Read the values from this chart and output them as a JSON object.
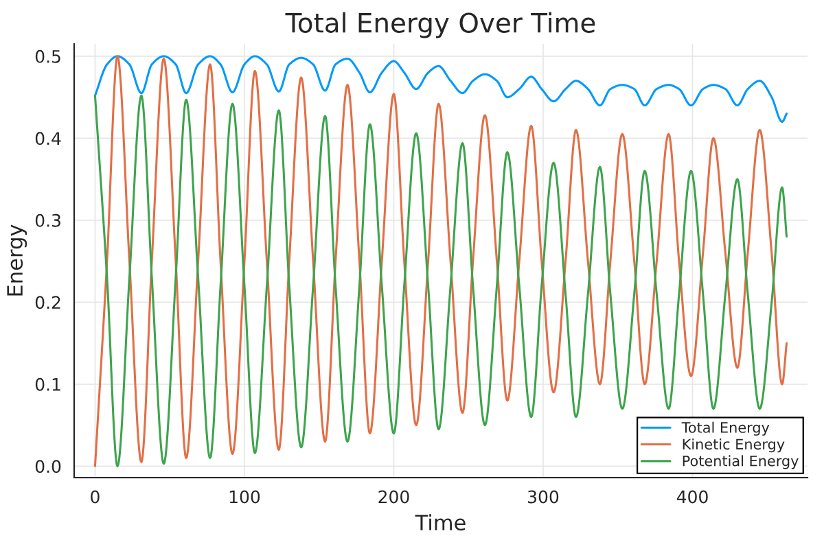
{
  "chart_data": {
    "type": "line",
    "title": "Total Energy Over Time",
    "xlabel": "Time",
    "ylabel": "Energy",
    "x": [
      0,
      8,
      15,
      23,
      31,
      38,
      46,
      54,
      61,
      69,
      77,
      84,
      92,
      100,
      107,
      115,
      123,
      130,
      138,
      146,
      154,
      161,
      169,
      177,
      184,
      192,
      200,
      207,
      215,
      223,
      230,
      238,
      246,
      253,
      261,
      269,
      276,
      284,
      292,
      299,
      307,
      315,
      322,
      330,
      338,
      345,
      353,
      361,
      368,
      376,
      384,
      391,
      399,
      407,
      414,
      422,
      430,
      437,
      445,
      453,
      460,
      463
    ],
    "series": [
      {
        "name": "Total Energy",
        "color": "#009af9",
        "values": [
          0.452,
          0.49,
          0.5,
          0.49,
          0.455,
          0.49,
          0.5,
          0.49,
          0.455,
          0.49,
          0.5,
          0.49,
          0.456,
          0.49,
          0.5,
          0.49,
          0.457,
          0.49,
          0.498,
          0.49,
          0.458,
          0.49,
          0.497,
          0.48,
          0.456,
          0.48,
          0.494,
          0.48,
          0.46,
          0.48,
          0.488,
          0.47,
          0.455,
          0.47,
          0.478,
          0.47,
          0.45,
          0.46,
          0.475,
          0.46,
          0.445,
          0.46,
          0.47,
          0.46,
          0.44,
          0.46,
          0.465,
          0.46,
          0.44,
          0.46,
          0.465,
          0.46,
          0.44,
          0.46,
          0.465,
          0.46,
          0.44,
          0.46,
          0.47,
          0.45,
          0.42,
          0.43
        ]
      },
      {
        "name": "Kinetic Energy",
        "color": "#e26f46",
        "values": [
          0,
          0.25,
          0.5,
          0.25,
          0.005,
          0.25,
          0.497,
          0.25,
          0.01,
          0.25,
          0.49,
          0.25,
          0.015,
          0.25,
          0.482,
          0.25,
          0.02,
          0.25,
          0.474,
          0.25,
          0.03,
          0.25,
          0.465,
          0.25,
          0.04,
          0.25,
          0.454,
          0.25,
          0.05,
          0.25,
          0.442,
          0.25,
          0.065,
          0.25,
          0.428,
          0.25,
          0.08,
          0.25,
          0.415,
          0.25,
          0.09,
          0.25,
          0.41,
          0.25,
          0.1,
          0.25,
          0.405,
          0.25,
          0.1,
          0.25,
          0.405,
          0.25,
          0.11,
          0.26,
          0.4,
          0.26,
          0.12,
          0.26,
          0.41,
          0.26,
          0.1,
          0.15
        ]
      },
      {
        "name": "Potential Energy",
        "color": "#3da44d",
        "values": [
          0.452,
          0.23,
          0,
          0.23,
          0.452,
          0.23,
          0.003,
          0.23,
          0.447,
          0.23,
          0.01,
          0.22,
          0.442,
          0.22,
          0.016,
          0.22,
          0.434,
          0.22,
          0.023,
          0.22,
          0.427,
          0.22,
          0.03,
          0.22,
          0.417,
          0.22,
          0.04,
          0.22,
          0.406,
          0.22,
          0.045,
          0.22,
          0.394,
          0.22,
          0.05,
          0.22,
          0.383,
          0.22,
          0.06,
          0.22,
          0.37,
          0.21,
          0.06,
          0.21,
          0.365,
          0.21,
          0.07,
          0.21,
          0.36,
          0.21,
          0.07,
          0.21,
          0.36,
          0.21,
          0.07,
          0.21,
          0.35,
          0.21,
          0.07,
          0.2,
          0.34,
          0.28
        ]
      }
    ],
    "xlim": [
      -14,
      477
    ],
    "ylim": [
      -0.014,
      0.515
    ],
    "xticks": [
      0,
      100,
      200,
      300,
      400
    ],
    "yticks": [
      {
        "value": 0,
        "label": "0.0"
      },
      0.1,
      0.2,
      0.3,
      0.4,
      0.5
    ],
    "grid": true,
    "legend": "bottom right"
  }
}
